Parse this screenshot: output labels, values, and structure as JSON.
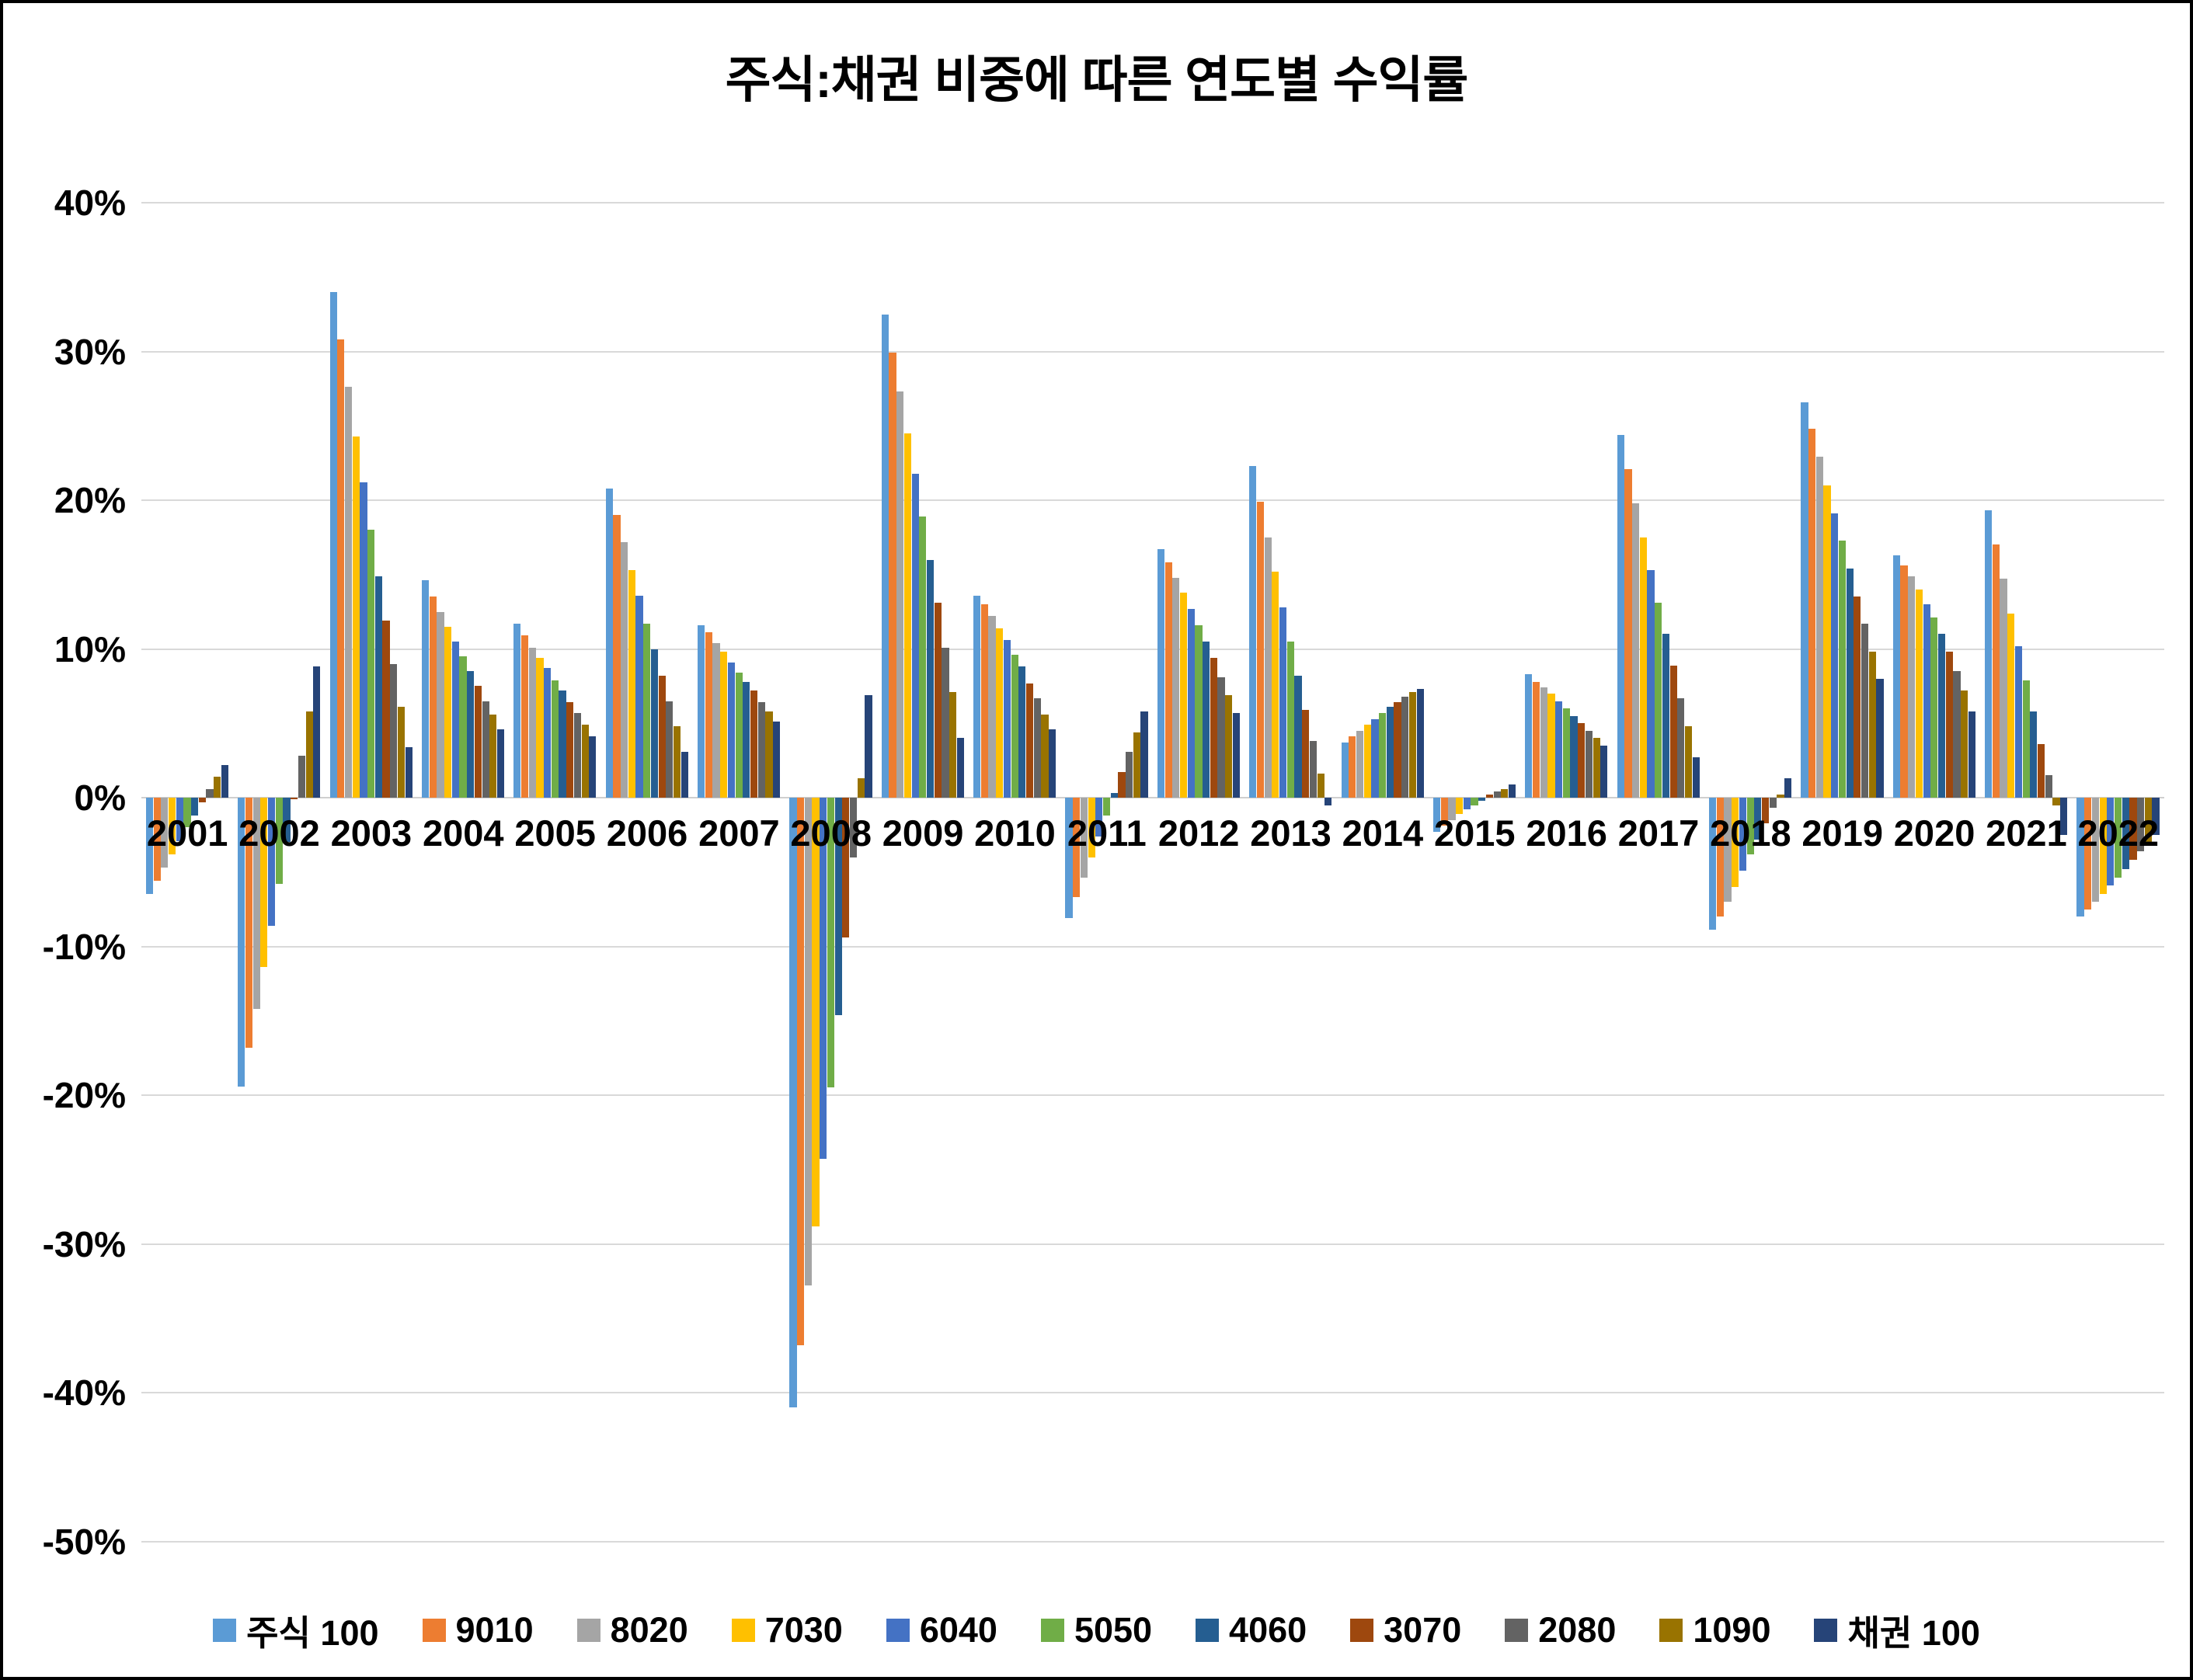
{
  "title": "주식:채권 비중에 따른 연도별 수익률",
  "chart_data": {
    "type": "bar",
    "title": "주식:채권 비중에 따른 연도별 수익률",
    "xlabel": "",
    "ylabel": "",
    "ylim": [
      -50,
      40
    ],
    "grid": true,
    "legend_position": "bottom",
    "y_ticks": [
      {
        "value": 40,
        "label": "40%"
      },
      {
        "value": 30,
        "label": "30%"
      },
      {
        "value": 20,
        "label": "20%"
      },
      {
        "value": 10,
        "label": "10%"
      },
      {
        "value": 0,
        "label": "0%"
      },
      {
        "value": -10,
        "label": "-10%"
      },
      {
        "value": -20,
        "label": "-20%"
      },
      {
        "value": -30,
        "label": "-30%"
      },
      {
        "value": -40,
        "label": "-40%"
      },
      {
        "value": -50,
        "label": "-50%"
      }
    ],
    "categories": [
      "2001",
      "2002",
      "2003",
      "2004",
      "2005",
      "2006",
      "2007",
      "2008",
      "2009",
      "2010",
      "2011",
      "2012",
      "2013",
      "2014",
      "2015",
      "2016",
      "2017",
      "2018",
      "2019",
      "2020",
      "2021",
      "2022"
    ],
    "series": [
      {
        "name": "주식 100",
        "color": "#5B9BD5",
        "values": [
          -6.5,
          -19.4,
          34.0,
          14.6,
          11.7,
          20.8,
          11.6,
          -41.0,
          32.5,
          13.6,
          -8.1,
          16.7,
          22.3,
          3.7,
          -2.3,
          8.3,
          24.4,
          -8.9,
          26.6,
          16.3,
          19.3,
          -8.0
        ]
      },
      {
        "name": "9010",
        "color": "#ED7D31",
        "values": [
          -5.6,
          -16.8,
          30.8,
          13.5,
          10.9,
          19.0,
          11.1,
          -36.8,
          29.9,
          13.0,
          -6.7,
          15.8,
          19.9,
          4.1,
          -1.9,
          7.8,
          22.1,
          -8.0,
          24.8,
          15.6,
          17.0,
          -7.5
        ]
      },
      {
        "name": "8020",
        "color": "#A5A5A5",
        "values": [
          -4.7,
          -14.2,
          27.6,
          12.5,
          10.1,
          17.2,
          10.4,
          -32.8,
          27.3,
          12.2,
          -5.4,
          14.8,
          17.5,
          4.5,
          -1.5,
          7.4,
          19.8,
          -7.0,
          22.9,
          14.9,
          14.7,
          -7.0
        ]
      },
      {
        "name": "7030",
        "color": "#FFC000",
        "values": [
          -3.8,
          -11.4,
          24.3,
          11.5,
          9.4,
          15.3,
          9.8,
          -28.8,
          24.5,
          11.4,
          -4.0,
          13.8,
          15.2,
          4.9,
          -1.1,
          7.0,
          17.5,
          -6.0,
          21.0,
          14.0,
          12.4,
          -6.5
        ]
      },
      {
        "name": "6040",
        "color": "#4472C4",
        "values": [
          -2.9,
          -8.6,
          21.2,
          10.5,
          8.7,
          13.6,
          9.1,
          -24.3,
          21.8,
          10.6,
          -2.6,
          12.7,
          12.8,
          5.3,
          -0.8,
          6.5,
          15.3,
          -4.9,
          19.1,
          13.0,
          10.2,
          -5.9
        ]
      },
      {
        "name": "5050",
        "color": "#70AD47",
        "values": [
          -2.0,
          -5.8,
          18.0,
          9.5,
          7.9,
          11.7,
          8.4,
          -19.5,
          18.9,
          9.6,
          -1.2,
          11.6,
          10.5,
          5.7,
          -0.5,
          6.0,
          13.1,
          -3.8,
          17.3,
          12.1,
          7.9,
          -5.4
        ]
      },
      {
        "name": "4060",
        "color": "#255E91",
        "values": [
          -1.2,
          -3.0,
          14.9,
          8.5,
          7.2,
          10.0,
          7.8,
          -14.6,
          16.0,
          8.8,
          0.3,
          10.5,
          8.2,
          6.1,
          -0.2,
          5.5,
          11.0,
          -2.8,
          15.4,
          11.0,
          5.8,
          -4.8
        ]
      },
      {
        "name": "3070",
        "color": "#9E480E",
        "values": [
          -0.3,
          -0.1,
          11.9,
          7.5,
          6.4,
          8.2,
          7.2,
          -9.4,
          13.1,
          7.7,
          1.7,
          9.4,
          5.9,
          6.4,
          0.2,
          5.0,
          8.9,
          -1.7,
          13.5,
          9.8,
          3.6,
          -4.2
        ]
      },
      {
        "name": "2080",
        "color": "#636363",
        "values": [
          0.6,
          2.8,
          9.0,
          6.5,
          5.7,
          6.5,
          6.4,
          -4.0,
          10.1,
          6.7,
          3.1,
          8.1,
          3.8,
          6.8,
          0.4,
          4.5,
          6.7,
          -0.7,
          11.7,
          8.5,
          1.5,
          -3.6
        ]
      },
      {
        "name": "1090",
        "color": "#997300",
        "values": [
          1.4,
          5.8,
          6.1,
          5.6,
          4.9,
          4.8,
          5.8,
          1.3,
          7.1,
          5.6,
          4.4,
          6.9,
          1.6,
          7.1,
          0.6,
          4.0,
          4.8,
          0.2,
          9.8,
          7.2,
          -0.5,
          -3.0
        ]
      },
      {
        "name": "채권 100",
        "color": "#264478",
        "values": [
          2.2,
          8.8,
          3.4,
          4.6,
          4.1,
          3.1,
          5.1,
          6.9,
          4.0,
          4.6,
          5.8,
          5.7,
          -0.5,
          7.3,
          0.9,
          3.5,
          2.7,
          1.3,
          8.0,
          5.8,
          -2.5,
          -2.5
        ]
      }
    ]
  }
}
